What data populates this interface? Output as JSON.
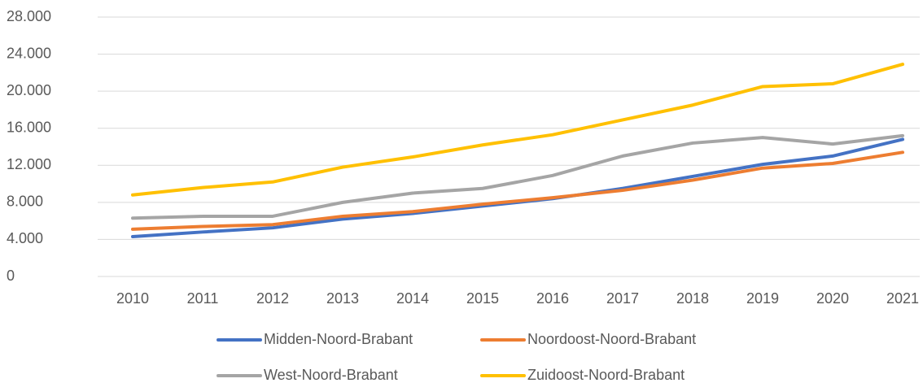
{
  "chart_data": {
    "type": "line",
    "categories": [
      "2010",
      "2011",
      "2012",
      "2013",
      "2014",
      "2015",
      "2016",
      "2017",
      "2018",
      "2019",
      "2020",
      "2021"
    ],
    "series": [
      {
        "name": "Midden-Noord-Brabant",
        "color": "#4472c4",
        "values": [
          4300,
          4800,
          5250,
          6200,
          6800,
          7600,
          8400,
          9500,
          10800,
          12100,
          13000,
          14800
        ]
      },
      {
        "name": "Noordoost-Noord-Brabant",
        "color": "#ed7d31",
        "values": [
          5100,
          5400,
          5600,
          6500,
          7000,
          7800,
          8500,
          9300,
          10400,
          11700,
          12200,
          13400
        ]
      },
      {
        "name": "West-Noord-Brabant",
        "color": "#a5a5a5",
        "values": [
          6300,
          6500,
          6500,
          8000,
          9000,
          9500,
          10900,
          13000,
          14400,
          15000,
          14300,
          15200
        ]
      },
      {
        "name": "Zuidoost-Noord-Brabant",
        "color": "#ffc000",
        "values": [
          8800,
          9600,
          10200,
          11800,
          12900,
          14200,
          15300,
          16900,
          18500,
          20500,
          20800,
          22900
        ]
      }
    ],
    "ylim": [
      0,
      28000
    ],
    "yticks": [
      0,
      {
        "value": 4000,
        "label": "4.000"
      },
      {
        "value": 8000,
        "label": "8.000"
      },
      {
        "value": 12000,
        "label": "12.000"
      },
      {
        "value": 16000,
        "label": "16.000"
      },
      {
        "value": 20000,
        "label": "20.000"
      },
      {
        "value": 24000,
        "label": "24.000"
      },
      {
        "value": 28000,
        "label": "28.000"
      }
    ],
    "grid": true,
    "legend": "bottom"
  }
}
